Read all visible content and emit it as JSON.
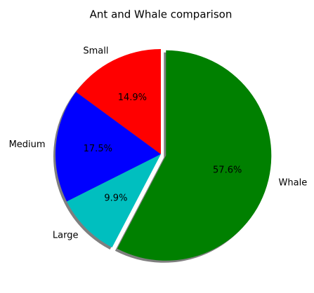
{
  "chart_data": {
    "type": "pie",
    "title": "Ant and Whale comparison",
    "categories": [
      "Small",
      "Medium",
      "Large",
      "Whale"
    ],
    "values": [
      14.9,
      17.5,
      9.9,
      57.6
    ],
    "value_labels": [
      "14.9%",
      "17.5%",
      "9.9%",
      "57.6%"
    ],
    "colors": [
      "#ff0000",
      "#0000ff",
      "#00bfbf",
      "#008000"
    ],
    "explode": [
      0,
      0,
      0,
      0.05
    ],
    "start_angle": 90,
    "shadow": true
  }
}
